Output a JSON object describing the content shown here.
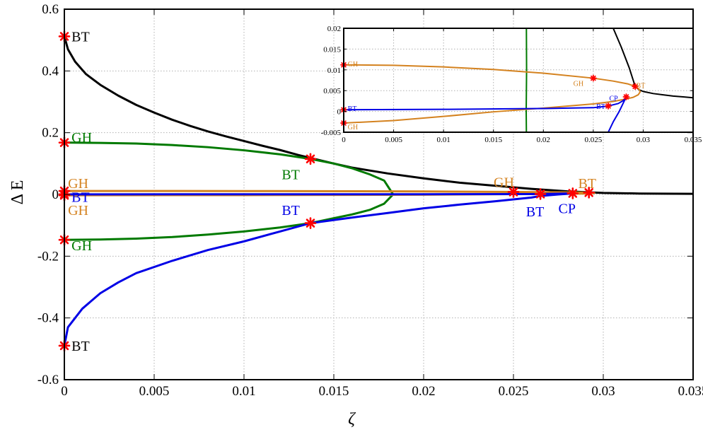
{
  "chart_data": [
    {
      "type": "line",
      "id": "main",
      "xlabel": "ζ",
      "ylabel": "Δ E",
      "xlim": [
        0,
        0.035
      ],
      "ylim": [
        -0.6,
        0.6
      ],
      "xticks": [
        0,
        0.005,
        0.01,
        0.015,
        0.02,
        0.025,
        0.03,
        0.035
      ],
      "xtick_labels": [
        "0",
        "0.005",
        "0.01",
        "0.015",
        "0.02",
        "0.025",
        "0.03",
        "0.035"
      ],
      "yticks": [
        -0.6,
        -0.4,
        -0.2,
        0,
        0.2,
        0.4,
        0.6
      ],
      "ytick_labels": [
        "-0.6",
        "-0.4",
        "-0.2",
        "0",
        "0.2",
        "0.4",
        "0.6"
      ],
      "grid": true,
      "series": [
        {
          "color": "#000000",
          "x": [
            0,
            0.0002,
            0.0006,
            0.0012,
            0.002,
            0.003,
            0.004,
            0.005,
            0.006,
            0.007,
            0.008,
            0.009,
            0.01,
            0.011,
            0.012,
            0.013,
            0.0137,
            0.015,
            0.016,
            0.018,
            0.02,
            0.022,
            0.024,
            0.026,
            0.028,
            0.0292,
            0.03,
            0.032,
            0.035
          ],
          "y": [
            0.512,
            0.47,
            0.43,
            0.39,
            0.355,
            0.32,
            0.29,
            0.265,
            0.242,
            0.222,
            0.204,
            0.188,
            0.173,
            0.158,
            0.144,
            0.128,
            0.118,
            0.1,
            0.087,
            0.068,
            0.052,
            0.038,
            0.028,
            0.018,
            0.01,
            0.007,
            0.005,
            0.003,
            0.002
          ]
        },
        {
          "color": "#007a00",
          "x": [
            0,
            0.002,
            0.004,
            0.006,
            0.008,
            0.01,
            0.012,
            0.0137,
            0.015,
            0.016,
            0.017,
            0.0178,
            0.0183,
            0.0178,
            0.017,
            0.016,
            0.015,
            0.0137,
            0.012,
            0.01,
            0.008,
            0.006,
            0.004,
            0.002,
            0
          ],
          "y": [
            0.168,
            0.167,
            0.165,
            0.16,
            0.153,
            0.143,
            0.13,
            0.115,
            0.1,
            0.085,
            0.065,
            0.045,
            0.0,
            -0.03,
            -0.05,
            -0.065,
            -0.077,
            -0.093,
            -0.107,
            -0.12,
            -0.13,
            -0.138,
            -0.143,
            -0.146,
            -0.147
          ]
        },
        {
          "color": "#d4821f",
          "x": [
            0,
            0.01,
            0.02,
            0.025,
            0.027,
            0.029,
            0.0295,
            0.029,
            0.027,
            0.025,
            0.02,
            0.01,
            0
          ],
          "y": [
            0.0112,
            0.011,
            0.0098,
            0.008,
            0.0072,
            0.0061,
            0.0045,
            0.003,
            0.002,
            0.001,
            -0.0008,
            -0.0022,
            -0.0028
          ]
        },
        {
          "color": "#0000e6",
          "x": [
            0,
            0.0002,
            0.001,
            0.002,
            0.003,
            0.004,
            0.006,
            0.008,
            0.01,
            0.012,
            0.0137,
            0.016,
            0.018,
            0.02,
            0.022,
            0.024,
            0.026,
            0.0265,
            0.0275,
            0.0283
          ],
          "y": [
            -0.49,
            -0.43,
            -0.37,
            -0.32,
            -0.285,
            -0.255,
            -0.215,
            -0.18,
            -0.152,
            -0.12,
            -0.093,
            -0.075,
            -0.06,
            -0.045,
            -0.033,
            -0.022,
            -0.01,
            -0.005,
            0,
            0.003
          ]
        },
        {
          "color": "#0000e6",
          "x": [
            0,
            0.01,
            0.02,
            0.026,
            0.0265,
            0.0275,
            0.0283
          ],
          "y": [
            0.0004,
            0.0005,
            0.0007,
            0.001,
            0.0013,
            0.0022,
            0.0035
          ]
        }
      ],
      "points": [
        {
          "x": 0,
          "y": 0.512
        },
        {
          "x": 0,
          "y": 0.168
        },
        {
          "x": 0,
          "y": 0.0112
        },
        {
          "x": 0,
          "y": 0.0004
        },
        {
          "x": 0,
          "y": -0.0028
        },
        {
          "x": 0,
          "y": -0.147
        },
        {
          "x": 0,
          "y": -0.49
        },
        {
          "x": 0.0137,
          "y": 0.115
        },
        {
          "x": 0.0137,
          "y": -0.093
        },
        {
          "x": 0.025,
          "y": 0.008
        },
        {
          "x": 0.0265,
          "y": 0.0013
        },
        {
          "x": 0.0283,
          "y": 0.0035
        },
        {
          "x": 0.0292,
          "y": 0.006
        }
      ],
      "annotations": [
        {
          "text": "BT",
          "x": 0.0004,
          "y": 0.512,
          "color": "#000000"
        },
        {
          "text": "GH",
          "x": 0.0004,
          "y": 0.185,
          "color": "#007a00"
        },
        {
          "text": "GH",
          "x": 0.0002,
          "y": 0.037,
          "color": "#d4821f"
        },
        {
          "text": "BT",
          "x": 0.0004,
          "y": -0.008,
          "color": "#0000e6"
        },
        {
          "text": "GH",
          "x": 0.0002,
          "y": -0.05,
          "color": "#d4821f"
        },
        {
          "text": "GH",
          "x": 0.0004,
          "y": -0.165,
          "color": "#007a00"
        },
        {
          "text": "BT",
          "x": 0.0004,
          "y": -0.49,
          "color": "#000000"
        },
        {
          "text": "BT",
          "x": 0.0121,
          "y": 0.065,
          "color": "#007a00"
        },
        {
          "text": "BT",
          "x": 0.0121,
          "y": -0.05,
          "color": "#0000e6"
        },
        {
          "text": "GH",
          "x": 0.0239,
          "y": 0.04,
          "color": "#d4821f"
        },
        {
          "text": "BT",
          "x": 0.0257,
          "y": -0.055,
          "color": "#0000e6"
        },
        {
          "text": "CP",
          "x": 0.0275,
          "y": -0.045,
          "color": "#0000e6"
        },
        {
          "text": "BT",
          "x": 0.0286,
          "y": 0.037,
          "color": "#d4821f"
        }
      ]
    },
    {
      "type": "line",
      "id": "inset",
      "xlim": [
        0,
        0.035
      ],
      "ylim": [
        -0.005,
        0.02
      ],
      "xticks": [
        0,
        0.005,
        0.01,
        0.015,
        0.02,
        0.025,
        0.03,
        0.035
      ],
      "xtick_labels": [
        "0",
        "0.005",
        "0.01",
        "0.015",
        "0.02",
        "0.025",
        "0.03",
        "0.035"
      ],
      "yticks": [
        -0.005,
        0,
        0.005,
        0.01,
        0.015,
        0.02
      ],
      "ytick_labels": [
        "-0.005",
        "0",
        "0.005",
        "0.01",
        "0.015",
        "0.02"
      ],
      "grid": true,
      "series": [
        {
          "color": "#000000",
          "x": [
            0.027,
            0.0278,
            0.0286,
            0.029,
            0.0292,
            0.0296,
            0.03,
            0.031,
            0.032,
            0.033,
            0.034,
            0.035
          ],
          "y": [
            0.02,
            0.0155,
            0.0105,
            0.0075,
            0.006,
            0.0052,
            0.0048,
            0.0043,
            0.004,
            0.0037,
            0.0035,
            0.0033
          ]
        },
        {
          "color": "#007a00",
          "x": [
            0.0183,
            0.01832,
            0.0183,
            0.01828,
            0.0183
          ],
          "y": [
            0.02,
            0.01,
            0.005,
            0.0,
            -0.005
          ]
        },
        {
          "color": "#d4821f",
          "x": [
            0,
            0.005,
            0.01,
            0.015,
            0.02,
            0.025,
            0.027,
            0.0285,
            0.0292,
            0.0296,
            0.0297,
            0.0295,
            0.029,
            0.0283,
            0.027,
            0.025,
            0.02,
            0.015,
            0.01,
            0.005,
            0
          ],
          "y": [
            0.0112,
            0.0111,
            0.0107,
            0.0101,
            0.0092,
            0.008,
            0.0073,
            0.0066,
            0.006,
            0.0053,
            0.0047,
            0.004,
            0.0034,
            0.003,
            0.0024,
            0.0018,
            0.0008,
            -0.0001,
            -0.0012,
            -0.0022,
            -0.0028
          ]
        },
        {
          "color": "#0000e6",
          "x": [
            0,
            0.01,
            0.02,
            0.025,
            0.0265,
            0.0275,
            0.028,
            0.0283
          ],
          "y": [
            0.0004,
            0.0005,
            0.0007,
            0.0009,
            0.0013,
            0.0019,
            0.0026,
            0.0035
          ]
        },
        {
          "color": "#0000e6",
          "x": [
            0.0265,
            0.027,
            0.0276,
            0.0281,
            0.0283
          ],
          "y": [
            -0.005,
            -0.0025,
            0.0,
            0.0025,
            0.0035
          ]
        }
      ],
      "points": [
        {
          "x": 0,
          "y": 0.0112
        },
        {
          "x": 0,
          "y": 0.0004
        },
        {
          "x": 0,
          "y": -0.0028
        },
        {
          "x": 0.025,
          "y": 0.008
        },
        {
          "x": 0.0265,
          "y": 0.0013
        },
        {
          "x": 0.0283,
          "y": 0.0035
        },
        {
          "x": 0.0292,
          "y": 0.006
        }
      ],
      "annotations": [
        {
          "text": "GH",
          "x": 0.0004,
          "y": 0.0114,
          "color": "#d4821f"
        },
        {
          "text": "BT",
          "x": 0.0004,
          "y": 0.0007,
          "color": "#0000e6"
        },
        {
          "text": "GH",
          "x": 0.0004,
          "y": -0.0037,
          "color": "#d4821f"
        },
        {
          "text": "GH",
          "x": 0.023,
          "y": 0.0067,
          "color": "#d4821f"
        },
        {
          "text": "BT",
          "x": 0.0253,
          "y": 0.0012,
          "color": "#0000e6"
        },
        {
          "text": "CP",
          "x": 0.0266,
          "y": 0.0032,
          "color": "#0000e6"
        },
        {
          "text": "BT",
          "x": 0.0293,
          "y": 0.0062,
          "color": "#d4821f"
        }
      ]
    }
  ]
}
